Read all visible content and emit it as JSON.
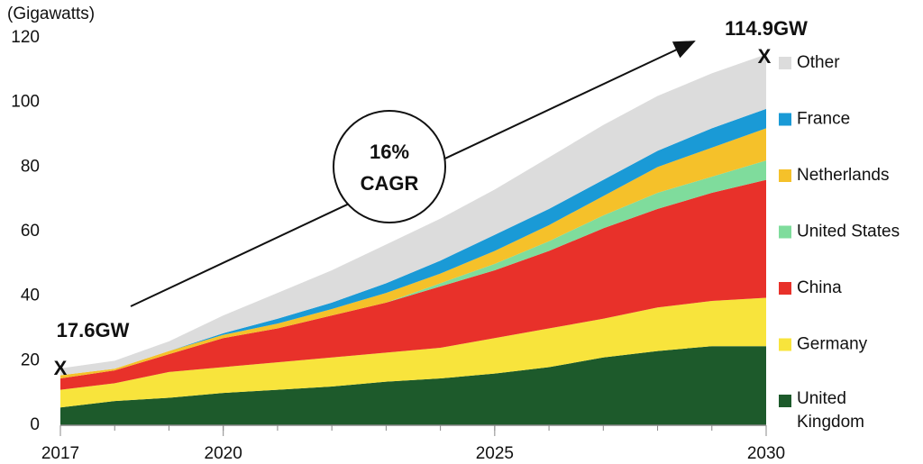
{
  "chart_data": {
    "type": "stacked_area",
    "y_label": "(Gigawatts)",
    "x": [
      2017,
      2018,
      2019,
      2020,
      2021,
      2022,
      2023,
      2024,
      2025,
      2026,
      2027,
      2028,
      2029,
      2030
    ],
    "xlim": [
      2017,
      2030
    ],
    "xticks": [
      2017,
      2020,
      2025,
      2030
    ],
    "ylim": [
      0,
      120
    ],
    "yticks": [
      0,
      20,
      40,
      60,
      80,
      100,
      120
    ],
    "grid": false,
    "legend": "right",
    "series": [
      {
        "name": "United Kingdom",
        "color": "#1d5a2b",
        "values": [
          5.5,
          7.5,
          8.5,
          10,
          11,
          12,
          13.5,
          14.5,
          16,
          18,
          21,
          23,
          24.5,
          24.5
        ]
      },
      {
        "name": "Germany",
        "color": "#f8e43c",
        "values": [
          5.5,
          5.5,
          8,
          8,
          8.5,
          9,
          9,
          9.5,
          11,
          12,
          12,
          13.5,
          14,
          15
        ]
      },
      {
        "name": "China",
        "color": "#e8312a",
        "values": [
          3.5,
          4,
          5.5,
          9,
          10.5,
          13,
          15.5,
          19,
          21,
          24,
          28,
          30.5,
          33.5,
          36.5
        ]
      },
      {
        "name": "United States",
        "color": "#7fdc9c",
        "values": [
          0,
          0,
          0,
          0,
          0,
          0,
          0,
          1,
          2,
          3,
          4,
          5,
          5,
          6
        ]
      },
      {
        "name": "Netherlands",
        "color": "#f5c12a",
        "values": [
          1,
          0.5,
          1,
          1,
          1.5,
          2,
          3,
          3,
          4,
          5,
          6,
          8,
          9,
          10
        ]
      },
      {
        "name": "France",
        "color": "#1a9ad6",
        "values": [
          0,
          0,
          0,
          0.5,
          1.5,
          2,
          3,
          4,
          5,
          5,
          5,
          5,
          6,
          6
        ]
      },
      {
        "name": "Other",
        "color": "#dcdcdc",
        "values": [
          2.1,
          2.5,
          3,
          5.5,
          8,
          10,
          12,
          13,
          14,
          16,
          17,
          17,
          17,
          16.9
        ]
      }
    ],
    "annotations": [
      "17.6GW",
      "X",
      "114.9GW",
      "X",
      "16%",
      "CAGR"
    ]
  }
}
